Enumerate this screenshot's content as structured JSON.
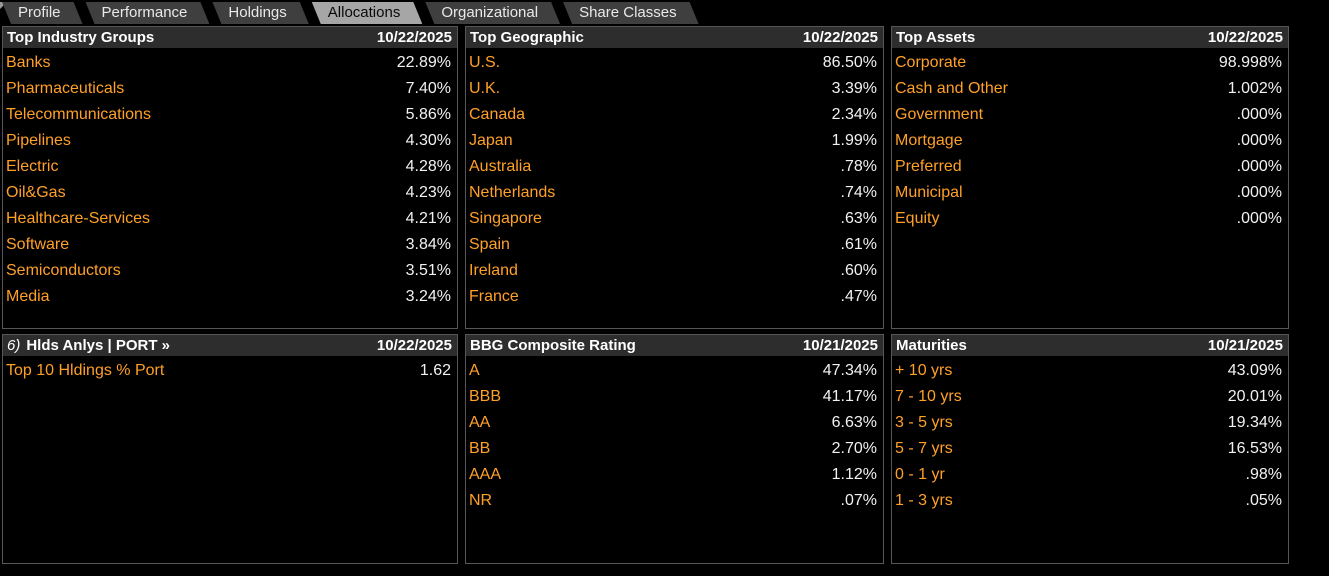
{
  "colors": {
    "accent_orange": "#ffa028",
    "value_white": "#f2f2f2",
    "panel_header_bg": "#2d2d2d",
    "tab_bg": "#3f3f3f",
    "tab_selected_bg": "#a6a6a6",
    "panel_border": "#565656",
    "background": "#000000"
  },
  "tabs": [
    {
      "label": "Profile",
      "selected": false
    },
    {
      "label": "Performance",
      "selected": false
    },
    {
      "label": "Holdings",
      "selected": false
    },
    {
      "label": "Allocations",
      "selected": true
    },
    {
      "label": "Organizational",
      "selected": false
    },
    {
      "label": "Share Classes",
      "selected": false
    }
  ],
  "panels": [
    {
      "title": "Top Industry Groups",
      "date": "10/22/2025",
      "rows": [
        {
          "label": "Banks",
          "value": "22.89%"
        },
        {
          "label": "Pharmaceuticals",
          "value": "7.40%"
        },
        {
          "label": "Telecommunications",
          "value": "5.86%"
        },
        {
          "label": "Pipelines",
          "value": "4.30%"
        },
        {
          "label": "Electric",
          "value": "4.28%"
        },
        {
          "label": "Oil&Gas",
          "value": "4.23%"
        },
        {
          "label": "Healthcare-Services",
          "value": "4.21%"
        },
        {
          "label": "Software",
          "value": "3.84%"
        },
        {
          "label": "Semiconductors",
          "value": "3.51%"
        },
        {
          "label": "Media",
          "value": "3.24%"
        }
      ]
    },
    {
      "title": "Top Geographic",
      "date": "10/22/2025",
      "rows": [
        {
          "label": "U.S.",
          "value": "86.50%"
        },
        {
          "label": "U.K.",
          "value": "3.39%"
        },
        {
          "label": "Canada",
          "value": "2.34%"
        },
        {
          "label": "Japan",
          "value": "1.99%"
        },
        {
          "label": "Australia",
          "value": ".78%"
        },
        {
          "label": "Netherlands",
          "value": ".74%"
        },
        {
          "label": "Singapore",
          "value": ".63%"
        },
        {
          "label": "Spain",
          "value": ".61%"
        },
        {
          "label": "Ireland",
          "value": ".60%"
        },
        {
          "label": "France",
          "value": ".47%"
        }
      ]
    },
    {
      "title": "Top Assets",
      "date": "10/22/2025",
      "rows": [
        {
          "label": "Corporate",
          "value": "98.998%"
        },
        {
          "label": "Cash and Other",
          "value": "1.002%"
        },
        {
          "label": "Government",
          "value": ".000%"
        },
        {
          "label": "Mortgage",
          "value": ".000%"
        },
        {
          "label": "Preferred",
          "value": ".000%"
        },
        {
          "label": "Municipal",
          "value": ".000%"
        },
        {
          "label": "Equity",
          "value": ".000%"
        }
      ]
    },
    {
      "title_prefix": "6)",
      "title": "Hlds Anlys | PORT »",
      "date": "10/22/2025",
      "rows": [
        {
          "label": "Top 10 Hldings % Port",
          "value": "1.62"
        }
      ]
    },
    {
      "title": "BBG Composite Rating",
      "date": "10/21/2025",
      "rows": [
        {
          "label": "A",
          "value": "47.34%"
        },
        {
          "label": "BBB",
          "value": "41.17%"
        },
        {
          "label": "AA",
          "value": "6.63%"
        },
        {
          "label": "BB",
          "value": "2.70%"
        },
        {
          "label": "AAA",
          "value": "1.12%"
        },
        {
          "label": "NR",
          "value": ".07%"
        }
      ]
    },
    {
      "title": "Maturities",
      "date": "10/21/2025",
      "rows": [
        {
          "label": "+ 10 yrs",
          "value": "43.09%"
        },
        {
          "label": "7 - 10 yrs",
          "value": "20.01%"
        },
        {
          "label": "3 - 5 yrs",
          "value": "19.34%"
        },
        {
          "label": "5 - 7 yrs",
          "value": "16.53%"
        },
        {
          "label": "0 - 1 yr",
          "value": ".98%"
        },
        {
          "label": "1 - 3 yrs",
          "value": ".05%"
        }
      ]
    }
  ]
}
